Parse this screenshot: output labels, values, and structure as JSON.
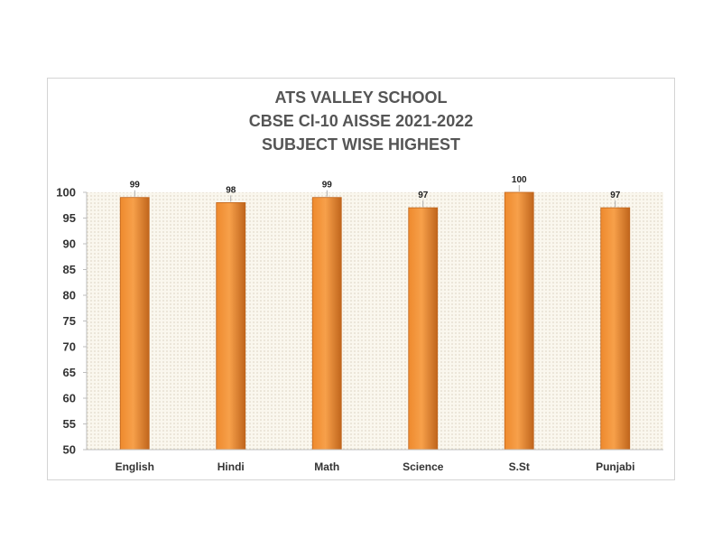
{
  "chart_data": {
    "type": "bar",
    "title_lines": [
      "ATS VALLEY SCHOOL",
      "CBSE Cl-10 AISSE 2021-2022",
      "SUBJECT WISE HIGHEST"
    ],
    "categories": [
      "English",
      "Hindi",
      "Math",
      "Science",
      "S.St",
      "Punjabi"
    ],
    "values": [
      99,
      98,
      99,
      97,
      100,
      97
    ],
    "data_labels": [
      "99",
      "98",
      "99",
      "97",
      "100",
      "97"
    ],
    "ylim": [
      50,
      100
    ],
    "yticks": [
      50,
      55,
      60,
      65,
      70,
      75,
      80,
      85,
      90,
      95,
      100
    ],
    "xlabel": "",
    "ylabel": "",
    "grid": false,
    "legend": "none",
    "colors": {
      "bar_light": "#f7a04a",
      "bar_mid": "#ee8a2e",
      "bar_dark": "#c0651c",
      "plot_bg": "#faf7ee",
      "dot": "#c9bfa6"
    }
  }
}
